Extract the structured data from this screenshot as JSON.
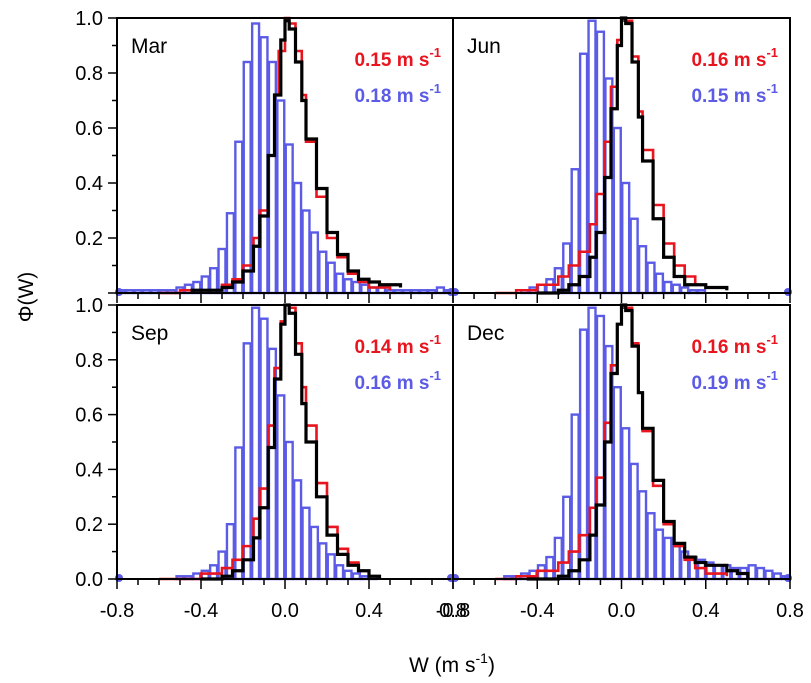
{
  "chart_data": {
    "type": "bar",
    "xlabel": "W (m s",
    "xlabel_sup": "-1",
    "xlabel_end": ")",
    "ylabel": "Φ(W)",
    "xlim": [
      -0.8,
      0.8
    ],
    "ylim": [
      0.0,
      1.0
    ],
    "x_tick_values": [
      -0.8,
      -0.4,
      0.0,
      0.4,
      0.8
    ],
    "x_tick_labels": [
      "-0.8",
      "-0.4",
      "0.0",
      "0.4",
      "0.8"
    ],
    "y_tick_values": [
      0.0,
      0.2,
      0.4,
      0.6,
      0.8,
      1.0
    ],
    "y_tick_labels": [
      "0.0",
      "0.2",
      "0.4",
      "0.6",
      "0.8",
      "1.0"
    ],
    "grid": false,
    "colors": {
      "red": "#e8141e",
      "blue": "#5b5be6",
      "black": "#000000"
    },
    "panels": [
      {
        "label": "Mar",
        "red_std": "0.15 m s",
        "blue_std": "0.18 m s",
        "std_sup": "-1",
        "blue_bins": [
          0.01,
          0.01,
          0.01,
          0.01,
          0.01,
          0.01,
          0.01,
          0.02,
          0.03,
          0.04,
          0.06,
          0.09,
          0.16,
          0.29,
          0.55,
          0.84,
          0.98,
          0.93,
          0.84,
          0.7,
          0.54,
          0.4,
          0.3,
          0.22,
          0.15,
          0.11,
          0.07,
          0.05,
          0.04,
          0.03,
          0.02,
          0.02,
          0.01,
          0.01,
          0.01,
          0.01,
          0.01,
          0.01,
          0.02,
          0.01
        ],
        "red_curve": [
          [
            -0.6,
            0.0
          ],
          [
            -0.5,
            0.01
          ],
          [
            -0.4,
            0.01
          ],
          [
            -0.3,
            0.03
          ],
          [
            -0.25,
            0.05
          ],
          [
            -0.2,
            0.1
          ],
          [
            -0.15,
            0.2
          ],
          [
            -0.12,
            0.3
          ],
          [
            -0.08,
            0.5
          ],
          [
            -0.05,
            0.72
          ],
          [
            -0.03,
            0.88
          ],
          [
            0.0,
            1.0
          ],
          [
            0.02,
            0.98
          ],
          [
            0.05,
            0.88
          ],
          [
            0.08,
            0.72
          ],
          [
            0.1,
            0.55
          ],
          [
            0.15,
            0.35
          ],
          [
            0.2,
            0.2
          ],
          [
            0.25,
            0.13
          ],
          [
            0.3,
            0.07
          ],
          [
            0.35,
            0.04
          ],
          [
            0.4,
            0.02
          ],
          [
            0.5,
            0.01
          ]
        ],
        "black_curve": [
          [
            -0.45,
            0.01
          ],
          [
            -0.3,
            0.02
          ],
          [
            -0.25,
            0.04
          ],
          [
            -0.2,
            0.08
          ],
          [
            -0.15,
            0.17
          ],
          [
            -0.12,
            0.28
          ],
          [
            -0.08,
            0.5
          ],
          [
            -0.05,
            0.72
          ],
          [
            -0.02,
            0.92
          ],
          [
            0.0,
            0.99
          ],
          [
            0.02,
            0.96
          ],
          [
            0.05,
            0.84
          ],
          [
            0.08,
            0.7
          ],
          [
            0.1,
            0.56
          ],
          [
            0.15,
            0.38
          ],
          [
            0.2,
            0.22
          ],
          [
            0.25,
            0.14
          ],
          [
            0.3,
            0.08
          ],
          [
            0.35,
            0.05
          ],
          [
            0.4,
            0.04
          ],
          [
            0.45,
            0.03
          ],
          [
            0.5,
            0.03
          ],
          [
            0.55,
            0.02
          ]
        ]
      },
      {
        "label": "Jun",
        "red_std": "0.16 m s",
        "blue_std": "0.15 m s",
        "std_sup": "-1",
        "blue_bins": [
          0.0,
          0.0,
          0.0,
          0.0,
          0.0,
          0.0,
          0.0,
          0.0,
          0.01,
          0.02,
          0.03,
          0.05,
          0.09,
          0.18,
          0.45,
          0.87,
          0.99,
          0.95,
          0.78,
          0.6,
          0.4,
          0.27,
          0.17,
          0.11,
          0.07,
          0.04,
          0.03,
          0.02,
          0.01,
          0.01,
          0.0,
          0.0,
          0.0,
          0.0,
          0.0,
          0.0,
          0.0,
          0.0,
          0.0,
          0.0
        ],
        "red_curve": [
          [
            -0.6,
            0.0
          ],
          [
            -0.5,
            0.01
          ],
          [
            -0.4,
            0.03
          ],
          [
            -0.3,
            0.06
          ],
          [
            -0.25,
            0.1
          ],
          [
            -0.2,
            0.15
          ],
          [
            -0.15,
            0.25
          ],
          [
            -0.12,
            0.36
          ],
          [
            -0.08,
            0.55
          ],
          [
            -0.05,
            0.75
          ],
          [
            -0.02,
            0.92
          ],
          [
            0.0,
            0.99
          ],
          [
            0.02,
            0.99
          ],
          [
            0.05,
            0.86
          ],
          [
            0.08,
            0.66
          ],
          [
            0.1,
            0.52
          ],
          [
            0.15,
            0.32
          ],
          [
            0.2,
            0.18
          ],
          [
            0.25,
            0.1
          ],
          [
            0.3,
            0.06
          ],
          [
            0.35,
            0.03
          ],
          [
            0.4,
            0.02
          ],
          [
            0.5,
            0.01
          ]
        ],
        "black_curve": [
          [
            -0.4,
            0.0
          ],
          [
            -0.3,
            0.01
          ],
          [
            -0.25,
            0.03
          ],
          [
            -0.2,
            0.06
          ],
          [
            -0.15,
            0.13
          ],
          [
            -0.12,
            0.22
          ],
          [
            -0.08,
            0.42
          ],
          [
            -0.05,
            0.67
          ],
          [
            -0.02,
            0.9
          ],
          [
            0.0,
            1.0
          ],
          [
            0.02,
            0.98
          ],
          [
            0.05,
            0.84
          ],
          [
            0.08,
            0.64
          ],
          [
            0.1,
            0.48
          ],
          [
            0.15,
            0.27
          ],
          [
            0.2,
            0.13
          ],
          [
            0.25,
            0.06
          ],
          [
            0.3,
            0.03
          ],
          [
            0.4,
            0.02
          ],
          [
            0.5,
            0.01
          ]
        ]
      },
      {
        "label": "Sep",
        "red_std": "0.14 m s",
        "blue_std": "0.16 m s",
        "std_sup": "-1",
        "blue_bins": [
          0.0,
          0.0,
          0.0,
          0.0,
          0.0,
          0.0,
          0.0,
          0.01,
          0.01,
          0.02,
          0.03,
          0.05,
          0.1,
          0.2,
          0.48,
          0.86,
          0.99,
          0.95,
          0.84,
          0.67,
          0.5,
          0.36,
          0.26,
          0.19,
          0.13,
          0.09,
          0.05,
          0.03,
          0.02,
          0.01,
          0.01,
          0.0,
          0.0,
          0.0,
          0.0,
          0.0,
          0.0,
          0.0,
          0.0,
          0.0
        ],
        "red_curve": [
          [
            -0.6,
            0.0
          ],
          [
            -0.5,
            0.0
          ],
          [
            -0.4,
            0.02
          ],
          [
            -0.3,
            0.04
          ],
          [
            -0.25,
            0.07
          ],
          [
            -0.2,
            0.12
          ],
          [
            -0.15,
            0.22
          ],
          [
            -0.12,
            0.33
          ],
          [
            -0.08,
            0.56
          ],
          [
            -0.05,
            0.77
          ],
          [
            -0.02,
            0.94
          ],
          [
            0.0,
            1.0
          ],
          [
            0.02,
            0.99
          ],
          [
            0.05,
            0.86
          ],
          [
            0.08,
            0.7
          ],
          [
            0.1,
            0.56
          ],
          [
            0.15,
            0.35
          ],
          [
            0.2,
            0.19
          ],
          [
            0.25,
            0.11
          ],
          [
            0.3,
            0.06
          ],
          [
            0.35,
            0.03
          ],
          [
            0.4,
            0.01
          ]
        ],
        "black_curve": [
          [
            -0.4,
            0.0
          ],
          [
            -0.3,
            0.01
          ],
          [
            -0.25,
            0.03
          ],
          [
            -0.2,
            0.07
          ],
          [
            -0.15,
            0.15
          ],
          [
            -0.12,
            0.26
          ],
          [
            -0.08,
            0.48
          ],
          [
            -0.05,
            0.73
          ],
          [
            -0.02,
            0.93
          ],
          [
            0.0,
            1.0
          ],
          [
            0.02,
            0.97
          ],
          [
            0.05,
            0.82
          ],
          [
            0.08,
            0.64
          ],
          [
            0.1,
            0.5
          ],
          [
            0.15,
            0.3
          ],
          [
            0.2,
            0.16
          ],
          [
            0.25,
            0.09
          ],
          [
            0.3,
            0.05
          ],
          [
            0.35,
            0.03
          ],
          [
            0.4,
            0.01
          ],
          [
            0.45,
            0.0
          ]
        ]
      },
      {
        "label": "Dec",
        "red_std": "0.16 m s",
        "blue_std": "0.19 m s",
        "std_sup": "-1",
        "blue_bins": [
          0.0,
          0.0,
          0.0,
          0.0,
          0.0,
          0.0,
          0.01,
          0.01,
          0.02,
          0.03,
          0.05,
          0.08,
          0.15,
          0.3,
          0.6,
          0.91,
          0.99,
          0.96,
          0.85,
          0.7,
          0.55,
          0.42,
          0.32,
          0.24,
          0.18,
          0.15,
          0.12,
          0.1,
          0.08,
          0.07,
          0.06,
          0.05,
          0.05,
          0.04,
          0.04,
          0.05,
          0.04,
          0.03,
          0.02,
          0.01
        ],
        "red_curve": [
          [
            -0.6,
            0.0
          ],
          [
            -0.5,
            0.01
          ],
          [
            -0.4,
            0.03
          ],
          [
            -0.3,
            0.06
          ],
          [
            -0.25,
            0.1
          ],
          [
            -0.2,
            0.16
          ],
          [
            -0.15,
            0.26
          ],
          [
            -0.12,
            0.37
          ],
          [
            -0.08,
            0.57
          ],
          [
            -0.05,
            0.78
          ],
          [
            -0.02,
            0.93
          ],
          [
            0.0,
            0.99
          ],
          [
            0.02,
            0.99
          ],
          [
            0.05,
            0.86
          ],
          [
            0.08,
            0.68
          ],
          [
            0.1,
            0.54
          ],
          [
            0.15,
            0.34
          ],
          [
            0.2,
            0.2
          ],
          [
            0.25,
            0.12
          ],
          [
            0.3,
            0.07
          ],
          [
            0.35,
            0.04
          ],
          [
            0.4,
            0.02
          ],
          [
            0.5,
            0.01
          ]
        ],
        "black_curve": [
          [
            -0.45,
            0.0
          ],
          [
            -0.3,
            0.01
          ],
          [
            -0.25,
            0.03
          ],
          [
            -0.2,
            0.07
          ],
          [
            -0.15,
            0.16
          ],
          [
            -0.12,
            0.27
          ],
          [
            -0.08,
            0.5
          ],
          [
            -0.05,
            0.75
          ],
          [
            -0.02,
            0.93
          ],
          [
            0.0,
            1.0
          ],
          [
            0.02,
            0.98
          ],
          [
            0.05,
            0.85
          ],
          [
            0.08,
            0.68
          ],
          [
            0.1,
            0.55
          ],
          [
            0.15,
            0.36
          ],
          [
            0.2,
            0.21
          ],
          [
            0.25,
            0.13
          ],
          [
            0.3,
            0.08
          ],
          [
            0.35,
            0.06
          ],
          [
            0.4,
            0.05
          ],
          [
            0.45,
            0.05
          ],
          [
            0.5,
            0.03
          ],
          [
            0.55,
            0.02
          ],
          [
            0.6,
            0.0
          ]
        ]
      }
    ]
  }
}
